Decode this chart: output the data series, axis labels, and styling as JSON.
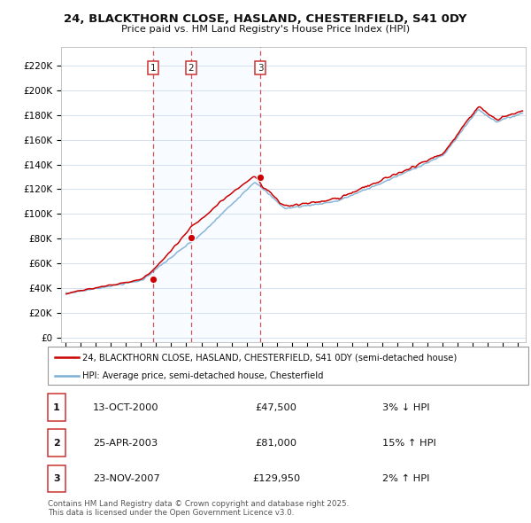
{
  "title": "24, BLACKTHORN CLOSE, HASLAND, CHESTERFIELD, S41 0DY",
  "subtitle": "Price paid vs. HM Land Registry's House Price Index (HPI)",
  "ytick_labels": [
    "£0",
    "£20K",
    "£40K",
    "£60K",
    "£80K",
    "£100K",
    "£120K",
    "£140K",
    "£160K",
    "£180K",
    "£200K",
    "£220K"
  ],
  "ytick_values": [
    0,
    20000,
    40000,
    60000,
    80000,
    100000,
    120000,
    140000,
    160000,
    180000,
    200000,
    220000
  ],
  "ylim": [
    -4000,
    235000
  ],
  "xlim_start": 1994.7,
  "xlim_end": 2025.5,
  "sale_years": [
    2000.79,
    2003.32,
    2007.9
  ],
  "sale_prices": [
    47500,
    81000,
    129950
  ],
  "sale_labels": [
    "1",
    "2",
    "3"
  ],
  "legend_property": "24, BLACKTHORN CLOSE, HASLAND, CHESTERFIELD, S41 0DY (semi-detached house)",
  "legend_hpi": "HPI: Average price, semi-detached house, Chesterfield",
  "property_color": "#cc0000",
  "hpi_color": "#7bafd4",
  "vline_color": "#cc3333",
  "shade_color": "#ddeeff",
  "grid_color": "#ccddee",
  "footnote": "Contains HM Land Registry data © Crown copyright and database right 2025.\nThis data is licensed under the Open Government Licence v3.0.",
  "table_rows": [
    [
      "1",
      "13-OCT-2000",
      "£47,500",
      "3% ↓ HPI"
    ],
    [
      "2",
      "25-APR-2003",
      "£81,000",
      "15% ↑ HPI"
    ],
    [
      "3",
      "23-NOV-2007",
      "£129,950",
      "2% ↑ HPI"
    ]
  ]
}
